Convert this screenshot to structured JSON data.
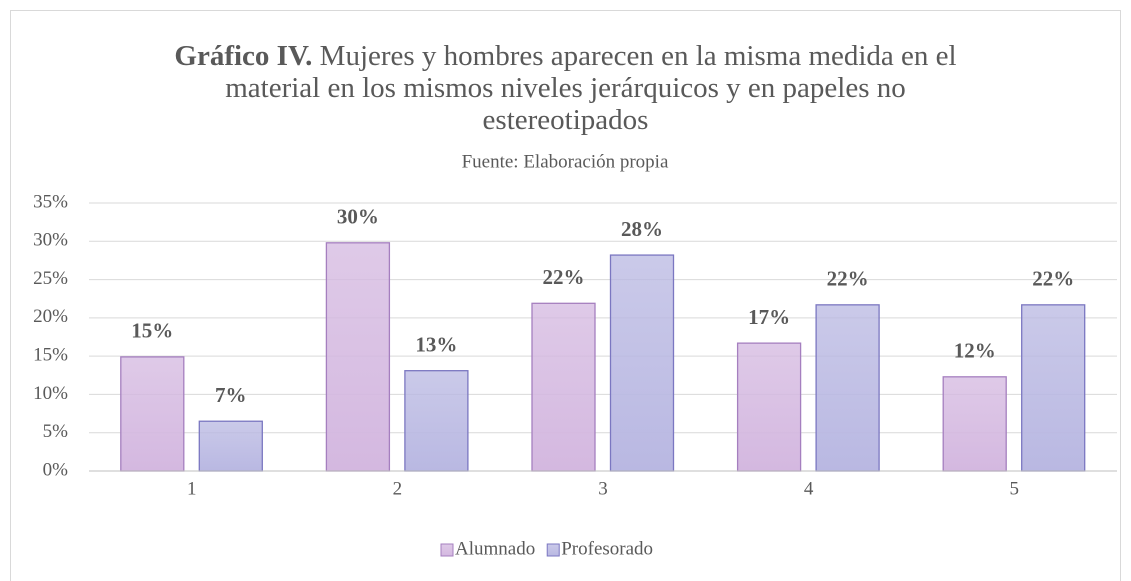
{
  "chart_data": {
    "type": "bar",
    "title_prefix": "Gráfico IV.",
    "title": "Mujeres y hombres aparecen en la misma medida en el material en los mismos niveles jerárquicos y en papeles no estereotipados",
    "subtitle": "Fuente: Elaboración propia",
    "categories": [
      "1",
      "2",
      "3",
      "4",
      "5"
    ],
    "series": [
      {
        "name": "Alumnado",
        "color": "#d4b8e0",
        "values": [
          14.9,
          29.8,
          21.9,
          16.7,
          12.3
        ],
        "value_labels": [
          "15%",
          "30%",
          "22%",
          "17%",
          "12%"
        ]
      },
      {
        "name": "Profesorado",
        "color": "#b9b8e2",
        "values": [
          6.5,
          13.1,
          28.2,
          21.7,
          21.7
        ],
        "value_labels": [
          "7%",
          "13%",
          "28%",
          "22%",
          "22%"
        ]
      }
    ],
    "ylim": [
      0,
      35
    ],
    "yticks": [
      {
        "value": 0,
        "label": "0%"
      },
      {
        "value": 5,
        "label": "5%"
      },
      {
        "value": 10,
        "label": "10%"
      },
      {
        "value": 15,
        "label": "15%"
      },
      {
        "value": 20,
        "label": "20%"
      },
      {
        "value": 25,
        "label": "25%"
      },
      {
        "value": 30,
        "label": "30%"
      },
      {
        "value": 35,
        "label": "35%"
      }
    ],
    "grid": true,
    "legend": "bottom"
  }
}
